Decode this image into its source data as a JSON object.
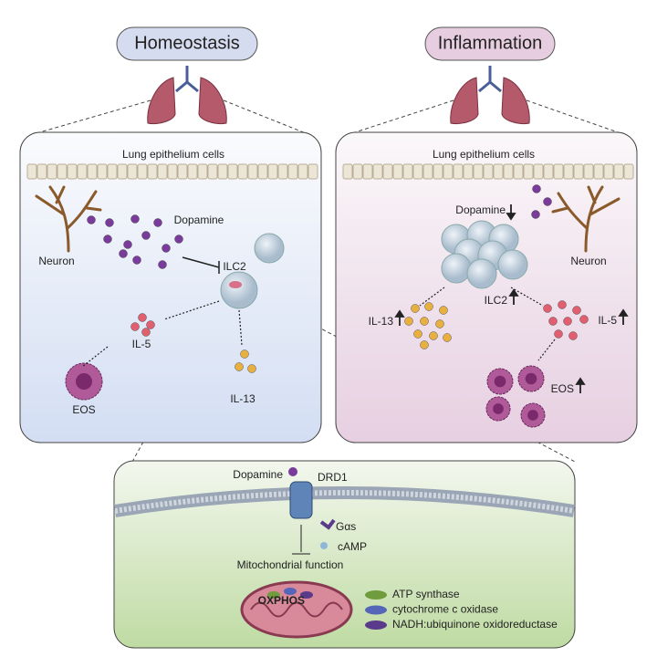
{
  "homeostasis": {
    "title": "Homeostasis",
    "epithelium": "Lung epithelium cells",
    "neuron": "Neuron",
    "dopamine": "Dopamine",
    "ilc2": "ILC2",
    "il5": "IL-5",
    "il13": "IL-13",
    "eos": "EOS"
  },
  "inflammation": {
    "title": "Inflammation",
    "epithelium": "Lung epithelium cells",
    "neuron": "Neuron",
    "dopamine": "Dopamine",
    "ilc2": "ILC2",
    "il5": "IL-5",
    "il13": "IL-13",
    "eos": "EOS"
  },
  "mechanism": {
    "dopamine": "Dopamine",
    "receptor": "DRD1",
    "g_protein": "Gαs",
    "camp": "cAMP",
    "mito": "Mitochondrial function",
    "oxphos": "OXPHOS",
    "legend": [
      {
        "label": "ATP synthase",
        "color": "#6f9c3c"
      },
      {
        "label": "cytochrome c oxidase",
        "color": "#5566b8"
      },
      {
        "label": "NADH:ubiquinone oxidoreductase",
        "color": "#5a3a8a"
      }
    ]
  }
}
